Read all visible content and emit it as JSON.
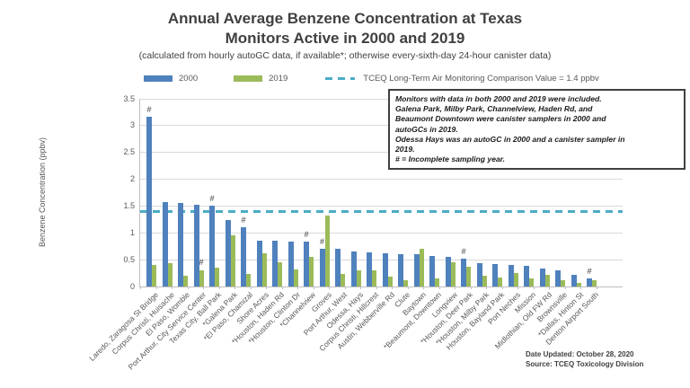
{
  "header": {
    "title": "Annual Average Benzene Concentration at Texas\nMonitors Active in 2000 and 2019",
    "subtitle": "(calculated from hourly autoGC data, if available*; otherwise every-sixth-day 24-hour canister data)"
  },
  "legend": {
    "series_2000_label": "2000",
    "series_2019_label": "2019",
    "reference_label": "TCEQ Long-Term Air Monitoring Comparison Value = 1.4 ppbv"
  },
  "annotation_box": {
    "text": "Monitors with data in both 2000 and 2019 were included.\nGalena Park, Milby Park, Channelview, Haden Rd, and\nBeaumont Downtown were canister samplers in 2000 and\nautoGCs in 2019.\nOdessa Hays was an autoGC in 2000 and a canister sampler in\n2019.\n# = Incomplete sampling year."
  },
  "footer": {
    "date_updated": "Date Updated: October 28, 2020",
    "source": "Source: TCEQ Toxicology Division"
  },
  "colors": {
    "series_2000": "#4F81BD",
    "series_2019": "#9BBB59",
    "reference_line": "#4BACC6",
    "gridline": "#D9D9D9",
    "axis": "#BFBFBF",
    "title_text": "#404040",
    "axis_text": "#595959"
  },
  "chart_data": {
    "type": "bar",
    "title": "Annual Average Benzene Concentration at Texas Monitors Active in 2000 and 2019",
    "xlabel": "",
    "ylabel": "Benzene Concentration (ppbv)",
    "ylim": [
      0,
      3.5
    ],
    "ytick_step": 0.5,
    "grid": true,
    "legend_position": "top",
    "reference_line": {
      "value": 1.4,
      "color": "#4BACC6",
      "label": "TCEQ Long-Term Air Monitoring Comparison Value = 1.4 ppbv"
    },
    "marker_symbol": "#",
    "marker_meaning": "Incomplete sampling year",
    "categories": [
      "Laredo, Zaragosa St Bridge",
      "Corpus Christi, Huisache",
      "El Paso, Womble",
      "Port Arthur, City Service Center",
      "Texas City, Ball Park",
      "*Galena Park",
      "*El Paso, Chamizal",
      "Shore Acres",
      "*Houston, Haden Rd",
      "*Houston, Clinton Dr",
      "*Channelview",
      "Groves",
      "Port Arthur, West",
      "Odessa, Hays",
      "Corpus Christi, Hillcrest",
      "Austin, Webberville Rd",
      "Clute",
      "Baytown",
      "*Beaumont, Downtown",
      "Longview",
      "*Houston, Deer Park",
      "*Houston, Milby Park",
      "Houston, Bayland Park",
      "Port Neches",
      "Mission",
      "Midlothian, Old FW Rd",
      "Brownsville",
      "*Dallas, Hinton St",
      "Denton Airport South"
    ],
    "series": [
      {
        "name": "2000",
        "color": "#4F81BD",
        "values": [
          3.16,
          1.57,
          1.55,
          1.53,
          1.5,
          1.24,
          1.11,
          0.86,
          0.85,
          0.84,
          0.83,
          0.71,
          0.7,
          0.65,
          0.64,
          0.62,
          0.61,
          0.6,
          0.57,
          0.55,
          0.52,
          0.44,
          0.42,
          0.41,
          0.38,
          0.34,
          0.3,
          0.22,
          0.15
        ]
      },
      {
        "name": "2019",
        "color": "#9BBB59",
        "values": [
          0.4,
          0.44,
          0.2,
          0.31,
          0.35,
          0.95,
          0.23,
          0.62,
          0.45,
          0.32,
          0.55,
          1.33,
          0.23,
          0.3,
          0.31,
          0.18,
          0.12,
          0.71,
          0.15,
          0.45,
          0.37,
          0.2,
          0.17,
          0.25,
          0.15,
          0.21,
          0.12,
          0.07,
          0.12
        ]
      }
    ],
    "incomplete_markers": [
      {
        "category": "Laredo, Zaragosa St Bridge",
        "series": "2000"
      },
      {
        "category": "Port Arthur, City Service Center",
        "series": "2019"
      },
      {
        "category": "Texas City, Ball Park",
        "series": "2000"
      },
      {
        "category": "*El Paso, Chamizal",
        "series": "2000"
      },
      {
        "category": "*Channelview",
        "series": "2000"
      },
      {
        "category": "Groves",
        "series": "2000"
      },
      {
        "category": "*Houston, Deer Park",
        "series": "2000"
      },
      {
        "category": "Denton Airport South",
        "series": "2000"
      }
    ]
  }
}
